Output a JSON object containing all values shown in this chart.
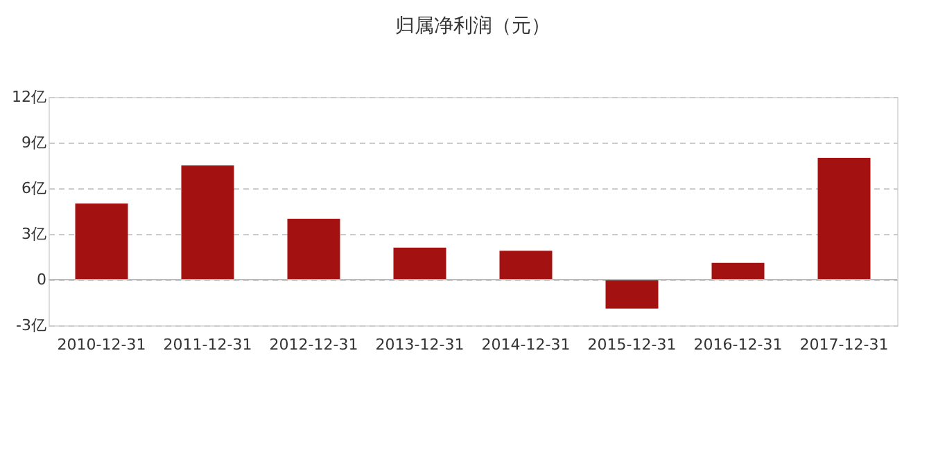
{
  "chart_data": {
    "type": "bar",
    "title": "归属净利润（元）",
    "categories": [
      "2010-12-31",
      "2011-12-31",
      "2012-12-31",
      "2013-12-31",
      "2014-12-31",
      "2015-12-31",
      "2016-12-31",
      "2017-12-31"
    ],
    "values": [
      5.0,
      7.5,
      4.0,
      2.1,
      1.9,
      -1.9,
      1.1,
      8.0
    ],
    "color": "#a31111",
    "ylim": [
      -3,
      12
    ],
    "yticks": [
      {
        "value": -3,
        "label": "-3亿"
      },
      0,
      {
        "value": 3,
        "label": "3亿"
      },
      {
        "value": 6,
        "label": "6亿"
      },
      {
        "value": 9,
        "label": "9亿"
      },
      {
        "value": 12,
        "label": "12亿"
      }
    ],
    "grid": "y"
  }
}
